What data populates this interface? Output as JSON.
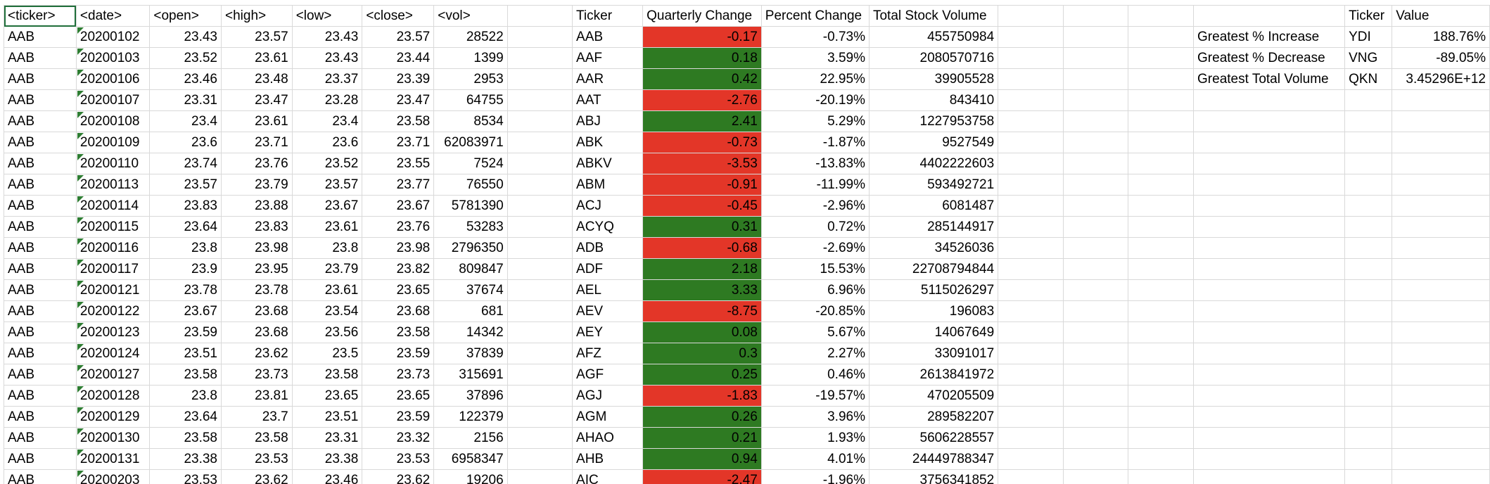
{
  "colors": {
    "negative_fill": "#e33628",
    "positive_fill": "#2e7a22",
    "gridline": "#d9d9d9",
    "selection": "#1f6e3a",
    "error_triangle": "#2e7d32"
  },
  "raw": {
    "headers": [
      "<ticker>",
      "<date>",
      "<open>",
      "<high>",
      "<low>",
      "<close>",
      "<vol>"
    ],
    "rows": [
      [
        "AAB",
        "20200102",
        "23.43",
        "23.57",
        "23.43",
        "23.57",
        "28522"
      ],
      [
        "AAB",
        "20200103",
        "23.52",
        "23.61",
        "23.43",
        "23.44",
        "1399"
      ],
      [
        "AAB",
        "20200106",
        "23.46",
        "23.48",
        "23.37",
        "23.39",
        "2953"
      ],
      [
        "AAB",
        "20200107",
        "23.31",
        "23.47",
        "23.28",
        "23.47",
        "64755"
      ],
      [
        "AAB",
        "20200108",
        "23.4",
        "23.61",
        "23.4",
        "23.58",
        "8534"
      ],
      [
        "AAB",
        "20200109",
        "23.6",
        "23.71",
        "23.6",
        "23.71",
        "62083971"
      ],
      [
        "AAB",
        "20200110",
        "23.74",
        "23.76",
        "23.52",
        "23.55",
        "7524"
      ],
      [
        "AAB",
        "20200113",
        "23.57",
        "23.79",
        "23.57",
        "23.77",
        "76550"
      ],
      [
        "AAB",
        "20200114",
        "23.83",
        "23.88",
        "23.67",
        "23.67",
        "5781390"
      ],
      [
        "AAB",
        "20200115",
        "23.64",
        "23.83",
        "23.61",
        "23.76",
        "53283"
      ],
      [
        "AAB",
        "20200116",
        "23.8",
        "23.98",
        "23.8",
        "23.98",
        "2796350"
      ],
      [
        "AAB",
        "20200117",
        "23.9",
        "23.95",
        "23.79",
        "23.82",
        "809847"
      ],
      [
        "AAB",
        "20200121",
        "23.78",
        "23.78",
        "23.61",
        "23.65",
        "37674"
      ],
      [
        "AAB",
        "20200122",
        "23.67",
        "23.68",
        "23.54",
        "23.68",
        "681"
      ],
      [
        "AAB",
        "20200123",
        "23.59",
        "23.68",
        "23.56",
        "23.58",
        "14342"
      ],
      [
        "AAB",
        "20200124",
        "23.51",
        "23.62",
        "23.5",
        "23.59",
        "37839"
      ],
      [
        "AAB",
        "20200127",
        "23.58",
        "23.73",
        "23.58",
        "23.73",
        "315691"
      ],
      [
        "AAB",
        "20200128",
        "23.8",
        "23.81",
        "23.65",
        "23.65",
        "37896"
      ],
      [
        "AAB",
        "20200129",
        "23.64",
        "23.7",
        "23.51",
        "23.59",
        "122379"
      ],
      [
        "AAB",
        "20200130",
        "23.58",
        "23.58",
        "23.31",
        "23.32",
        "2156"
      ],
      [
        "AAB",
        "20200131",
        "23.38",
        "23.53",
        "23.38",
        "23.53",
        "6958347"
      ],
      [
        "AAB",
        "20200203",
        "23.53",
        "23.62",
        "23.46",
        "23.62",
        "19206"
      ]
    ]
  },
  "summary": {
    "headers": [
      "Ticker",
      "Quarterly Change",
      "Percent Change",
      "Total Stock Volume"
    ],
    "rows": [
      [
        "AAB",
        "-0.17",
        "-0.73%",
        "455750984"
      ],
      [
        "AAF",
        "0.18",
        "3.59%",
        "2080570716"
      ],
      [
        "AAR",
        "0.42",
        "22.95%",
        "39905528"
      ],
      [
        "AAT",
        "-2.76",
        "-20.19%",
        "843410"
      ],
      [
        "ABJ",
        "2.41",
        "5.29%",
        "1227953758"
      ],
      [
        "ABK",
        "-0.73",
        "-1.87%",
        "9527549"
      ],
      [
        "ABKV",
        "-3.53",
        "-13.83%",
        "4402222603"
      ],
      [
        "ABM",
        "-0.91",
        "-11.99%",
        "593492721"
      ],
      [
        "ACJ",
        "-0.45",
        "-2.96%",
        "6081487"
      ],
      [
        "ACYQ",
        "0.31",
        "0.72%",
        "285144917"
      ],
      [
        "ADB",
        "-0.68",
        "-2.69%",
        "34526036"
      ],
      [
        "ADF",
        "2.18",
        "15.53%",
        "22708794844"
      ],
      [
        "AEL",
        "3.33",
        "6.96%",
        "5115026297"
      ],
      [
        "AEV",
        "-8.75",
        "-20.85%",
        "196083"
      ],
      [
        "AEY",
        "0.08",
        "5.67%",
        "14067649"
      ],
      [
        "AFZ",
        "0.3",
        "2.27%",
        "33091017"
      ],
      [
        "AGF",
        "0.25",
        "0.46%",
        "2613841972"
      ],
      [
        "AGJ",
        "-1.83",
        "-19.57%",
        "470205509"
      ],
      [
        "AGM",
        "0.26",
        "3.96%",
        "289582207"
      ],
      [
        "AHAO",
        "0.21",
        "1.93%",
        "5606228557"
      ],
      [
        "AHB",
        "0.94",
        "4.01%",
        "24449788347"
      ],
      [
        "AIC",
        "-2.47",
        "-1.96%",
        "3756341852"
      ]
    ]
  },
  "greatest": {
    "headers": [
      "Ticker",
      "Value"
    ],
    "rows": [
      [
        "Greatest % Increase",
        "YDI",
        "188.76%"
      ],
      [
        "Greatest % Decrease",
        "VNG",
        "-89.05%"
      ],
      [
        "Greatest Total Volume",
        "QKN",
        "3.45296E+12"
      ]
    ]
  }
}
